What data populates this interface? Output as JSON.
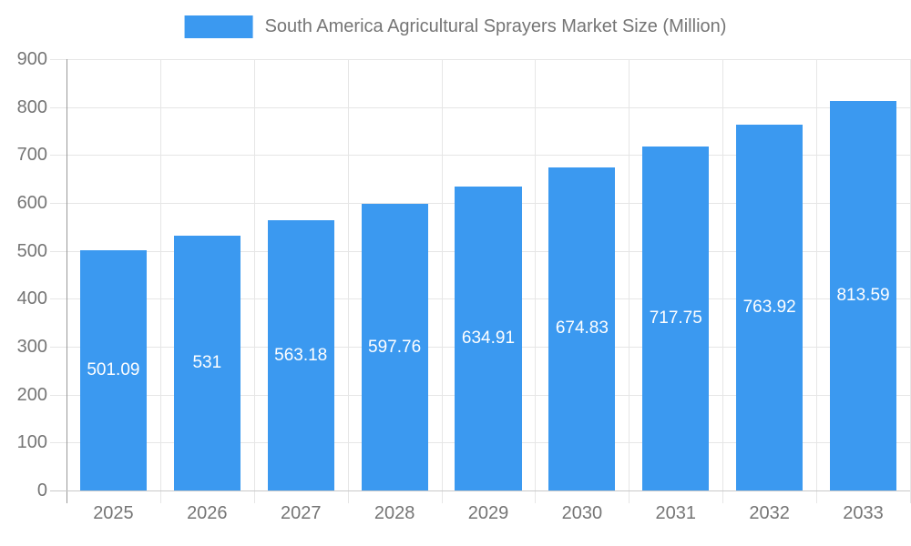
{
  "chart_data": {
    "type": "bar",
    "title": "South America Agricultural Sprayers Market Size (Million)",
    "categories": [
      "2025",
      "2026",
      "2027",
      "2028",
      "2029",
      "2030",
      "2031",
      "2032",
      "2033"
    ],
    "series": [
      {
        "name": "South America Agricultural Sprayers Market Size (Million)",
        "values": [
          501.09,
          531,
          563.18,
          597.76,
          634.91,
          674.83,
          717.75,
          763.92,
          813.59
        ],
        "value_labels": [
          "501.09",
          "531",
          "563.18",
          "597.76",
          "634.91",
          "674.83",
          "717.75",
          "763.92",
          "813.59"
        ],
        "color": "#3B99F0"
      }
    ],
    "xlabel": "",
    "ylabel": "",
    "ylim": [
      0,
      900
    ],
    "ytick_step": 100,
    "ytick_labels": [
      "0",
      "100",
      "200",
      "300",
      "400",
      "500",
      "600",
      "700",
      "800",
      "900"
    ],
    "grid": "on",
    "legend_position": "top-center",
    "colors": {
      "bar": "#3B99F0",
      "value_label_text": "#ffffff",
      "axis_text": "#757575",
      "grid_line": "#e6e6e6",
      "zero_line": "#c9c9c9",
      "axis_line": "#999999",
      "background": "#ffffff"
    }
  }
}
